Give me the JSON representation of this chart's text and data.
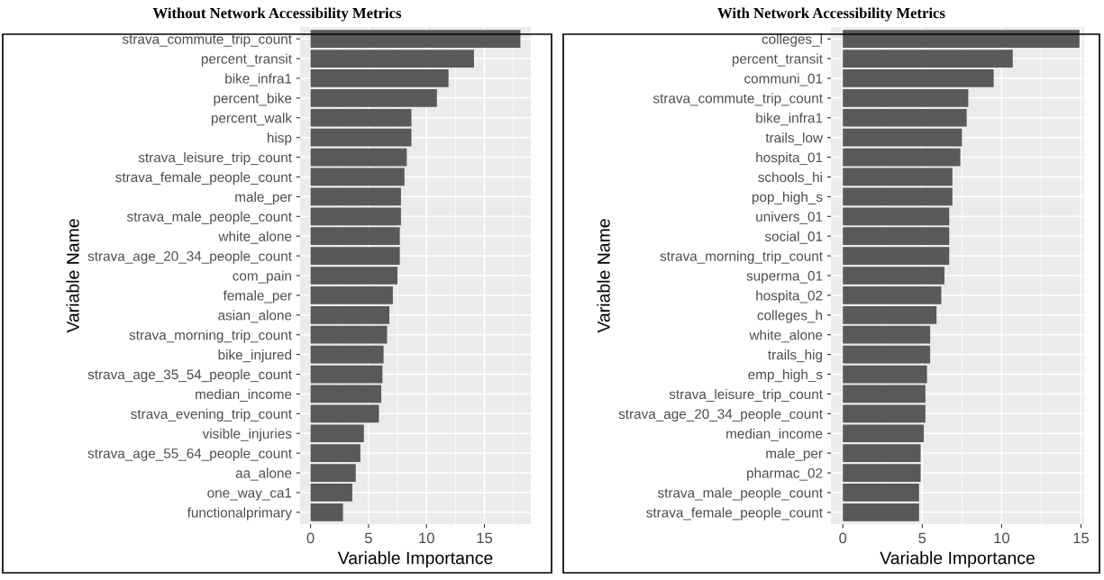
{
  "chart_data": [
    {
      "type": "bar",
      "orientation": "horizontal",
      "title": "Without Network Accessibility Metrics",
      "xlabel": "Variable Importance",
      "ylabel": "Variable Name",
      "categories": [
        "strava_commute_trip_count",
        "percent_transit",
        "bike_infra1",
        "percent_bike",
        "percent_walk",
        "hisp",
        "strava_leisure_trip_count",
        "strava_female_people_count",
        "male_per",
        "strava_male_people_count",
        "white_alone",
        "strava_age_20_34_people_count",
        "com_pain",
        "female_per",
        "asian_alone",
        "strava_morning_trip_count",
        "bike_injured",
        "strava_age_35_54_people_count",
        "median_income",
        "strava_evening_trip_count",
        "visible_injuries",
        "strava_age_55_64_people_count",
        "aa_alone",
        "one_way_ca1",
        "functionalprimary"
      ],
      "values": [
        18.1,
        14.1,
        11.9,
        10.9,
        8.7,
        8.7,
        8.3,
        8.1,
        7.8,
        7.8,
        7.7,
        7.7,
        7.5,
        7.1,
        6.8,
        6.6,
        6.3,
        6.2,
        6.1,
        5.9,
        4.6,
        4.3,
        3.9,
        3.6,
        2.8
      ],
      "color": "#595959",
      "xlim": [
        -0.9,
        19.0
      ],
      "xticks": [
        0,
        5,
        10,
        15
      ],
      "grid": true
    },
    {
      "type": "bar",
      "orientation": "horizontal",
      "title": "With Network Accessibility Metrics",
      "xlabel": "Variable Importance",
      "ylabel": "Variable Name",
      "categories": [
        "colleges_l",
        "percent_transit",
        "communi_01",
        "strava_commute_trip_count",
        "bike_infra1",
        "trails_low",
        "hospita_01",
        "schools_hi",
        "pop_high_s",
        "univers_01",
        "social_01",
        "strava_morning_trip_count",
        "superma_01",
        "hospita_02",
        "colleges_h",
        "white_alone",
        "trails_hig",
        "emp_high_s",
        "strava_leisure_trip_count",
        "strava_age_20_34_people_count",
        "median_income",
        "male_per",
        "pharmac_02",
        "strava_male_people_count",
        "strava_female_people_count"
      ],
      "values": [
        14.9,
        10.7,
        9.5,
        7.9,
        7.8,
        7.5,
        7.4,
        6.9,
        6.9,
        6.7,
        6.7,
        6.7,
        6.4,
        6.2,
        5.9,
        5.5,
        5.5,
        5.3,
        5.2,
        5.2,
        5.1,
        4.9,
        4.9,
        4.8,
        4.8
      ],
      "color": "#595959",
      "xlim": [
        -0.75,
        15.2
      ],
      "xticks": [
        0,
        5,
        10,
        15
      ],
      "grid": true
    }
  ]
}
